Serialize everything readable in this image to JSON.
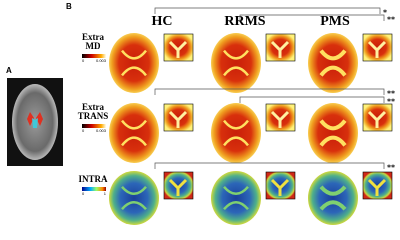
{
  "panel_a": {
    "label": "A"
  },
  "panel_b": {
    "label": "B",
    "columns": [
      "HC",
      "RRMS",
      "PMS"
    ],
    "rows": [
      {
        "label": [
          "Extra",
          "MD"
        ],
        "colorbar": {
          "min": "0",
          "max": "0.003"
        },
        "significance": [
          {
            "stars": "*"
          },
          {
            "stars": "**"
          }
        ]
      },
      {
        "label": [
          "Extra",
          "TRANS"
        ],
        "colorbar": {
          "min": "0",
          "max": "0.003"
        },
        "significance": [
          {
            "stars": "**"
          },
          {
            "stars": "**"
          }
        ]
      },
      {
        "label": [
          "INTRA"
        ],
        "colorbar": {
          "min": "0",
          "max": "1"
        },
        "significance": [
          {
            "stars": "**"
          }
        ]
      }
    ]
  }
}
